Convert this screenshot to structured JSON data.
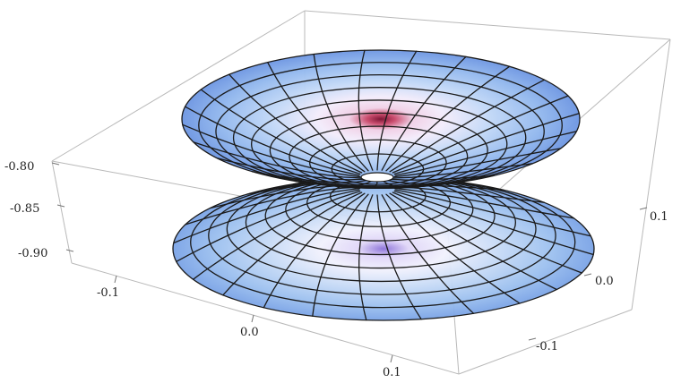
{
  "chart_data": {
    "type": "surface3d",
    "surface": "funnel (catenoid-like) surface, two sheets joined at a narrow throat at the center",
    "z_axis": {
      "ticks": [
        "-0.80",
        "-0.85",
        "-0.90"
      ],
      "values": [
        -0.8,
        -0.85,
        -0.9
      ]
    },
    "x_axis": {
      "ticks": [
        "-0.1",
        "0.0",
        "0.1"
      ],
      "values": [
        -0.1,
        0.0,
        0.1
      ]
    },
    "y_axis": {
      "ticks": [
        "0.1",
        "0.0",
        "-0.1"
      ],
      "values": [
        0.1,
        0.0,
        -0.1
      ]
    },
    "mesh": {
      "rings": 9,
      "spokes": 24
    },
    "colors": {
      "outer": "#9ec2f0",
      "throat": "#b0304a",
      "edge": "#6d95e0",
      "box": "#b9b9b9",
      "mesh_line": "#1a1a1a"
    },
    "bounding_box": true
  }
}
